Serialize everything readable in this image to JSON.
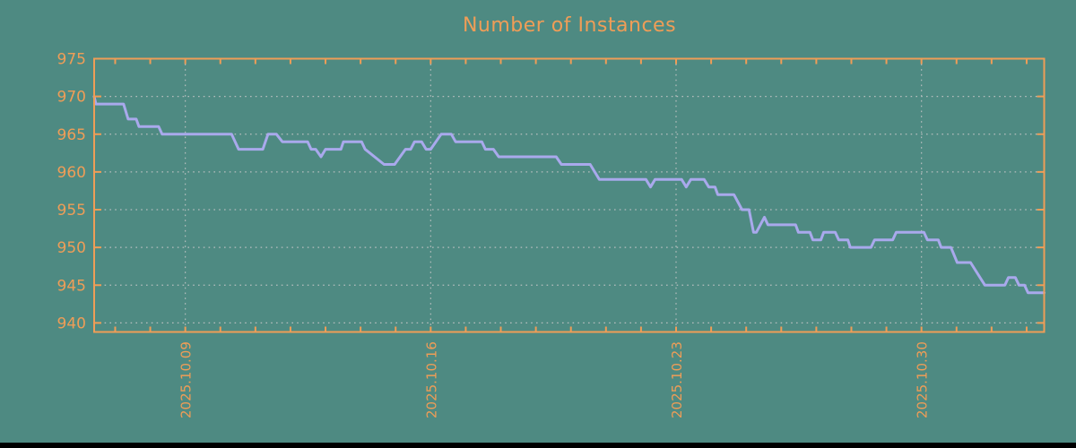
{
  "title": "Number of Instances",
  "colors": {
    "background": "#4e8a82",
    "frame": "#ef9d57",
    "text": "#ef9d57",
    "line": "#a9a9ec",
    "grid": "#b6bebe",
    "bottom_bar": "#000000"
  },
  "chart_data": {
    "type": "line",
    "title": "Number of Instances",
    "legend": "none",
    "x_axis": {
      "tick_labels": [
        "2025.10.09",
        "2025.10.16",
        "2025.10.23",
        "2025.10.30"
      ],
      "major_tick_days": [
        0,
        7,
        14,
        21
      ],
      "minor_tick_every_days": 1,
      "range_days": [
        -2.6,
        24.5
      ],
      "label_rotation_deg": -90
    },
    "y_axis": {
      "tick_labels": [
        "975",
        "970",
        "965",
        "960",
        "955",
        "950",
        "945",
        "940"
      ],
      "tick_values": [
        975,
        970,
        965,
        960,
        955,
        950,
        945,
        940
      ],
      "range": [
        938.8,
        975
      ]
    },
    "grid": {
      "style": "dotted",
      "horizontal": true,
      "vertical": true
    },
    "series": [
      {
        "name": "instances",
        "color": "#a9a9ec",
        "points": [
          [
            -2.6,
            970
          ],
          [
            -2.55,
            969
          ],
          [
            -1.76,
            969
          ],
          [
            -1.63,
            967
          ],
          [
            -1.4,
            967
          ],
          [
            -1.32,
            966
          ],
          [
            -0.76,
            966
          ],
          [
            -0.66,
            965
          ],
          [
            1.32,
            965
          ],
          [
            1.52,
            963
          ],
          [
            2.21,
            963
          ],
          [
            2.36,
            965
          ],
          [
            2.6,
            965
          ],
          [
            2.77,
            964
          ],
          [
            3.49,
            964
          ],
          [
            3.59,
            963
          ],
          [
            3.72,
            963
          ],
          [
            3.87,
            962
          ],
          [
            4.0,
            963
          ],
          [
            4.44,
            963
          ],
          [
            4.51,
            964
          ],
          [
            5.03,
            964
          ],
          [
            5.13,
            963
          ],
          [
            5.67,
            961
          ],
          [
            5.97,
            961
          ],
          [
            6.28,
            963
          ],
          [
            6.43,
            963
          ],
          [
            6.54,
            964
          ],
          [
            6.74,
            964
          ],
          [
            6.87,
            963
          ],
          [
            7.0,
            963
          ],
          [
            7.3,
            965
          ],
          [
            7.59,
            965
          ],
          [
            7.71,
            964
          ],
          [
            8.46,
            964
          ],
          [
            8.56,
            963
          ],
          [
            8.79,
            963
          ],
          [
            8.94,
            962
          ],
          [
            10.58,
            962
          ],
          [
            10.73,
            961
          ],
          [
            11.55,
            961
          ],
          [
            11.81,
            959
          ],
          [
            13.14,
            959
          ],
          [
            13.27,
            958
          ],
          [
            13.4,
            959
          ],
          [
            14.16,
            959
          ],
          [
            14.29,
            958
          ],
          [
            14.42,
            959
          ],
          [
            14.8,
            959
          ],
          [
            14.93,
            958
          ],
          [
            15.11,
            958
          ],
          [
            15.19,
            957
          ],
          [
            15.65,
            957
          ],
          [
            15.88,
            955
          ],
          [
            16.08,
            955
          ],
          [
            16.21,
            952
          ],
          [
            16.29,
            952
          ],
          [
            16.52,
            954
          ],
          [
            16.62,
            953
          ],
          [
            17.41,
            953
          ],
          [
            17.49,
            952
          ],
          [
            17.82,
            952
          ],
          [
            17.9,
            951
          ],
          [
            18.13,
            951
          ],
          [
            18.21,
            952
          ],
          [
            18.54,
            952
          ],
          [
            18.64,
            951
          ],
          [
            18.9,
            951
          ],
          [
            18.97,
            950
          ],
          [
            19.56,
            950
          ],
          [
            19.66,
            951
          ],
          [
            20.18,
            951
          ],
          [
            20.28,
            952
          ],
          [
            21.07,
            952
          ],
          [
            21.17,
            951
          ],
          [
            21.48,
            951
          ],
          [
            21.56,
            950
          ],
          [
            21.84,
            950
          ],
          [
            22.02,
            948
          ],
          [
            22.4,
            948
          ],
          [
            22.81,
            945
          ],
          [
            23.38,
            945
          ],
          [
            23.48,
            946
          ],
          [
            23.68,
            946
          ],
          [
            23.78,
            945
          ],
          [
            23.94,
            945
          ],
          [
            24.04,
            944
          ],
          [
            24.5,
            944
          ]
        ]
      }
    ]
  }
}
